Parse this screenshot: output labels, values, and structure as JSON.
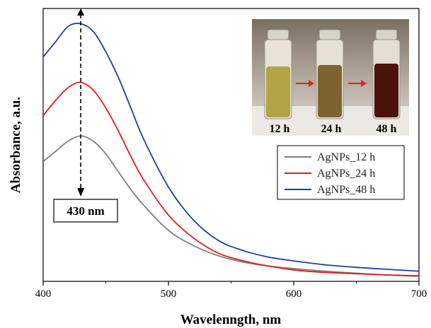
{
  "chart_data": {
    "type": "line",
    "xlabel": "Wavelenngth, nm",
    "ylabel": "Absorbance, a.u.",
    "xlim": [
      400,
      700
    ],
    "x_ticks": [
      "400",
      "500",
      "600",
      "700"
    ],
    "y_ticks": [],
    "grid": false,
    "legend_position": "right",
    "peak_annotation": {
      "x": 430,
      "label": "430 nm"
    },
    "inset_labels": [
      "12 h",
      "24 h",
      "48 h"
    ],
    "series": [
      {
        "name": "AgNPs_12 h",
        "color": "#7f7f7f",
        "x": [
          400,
          410,
          420,
          430,
          440,
          450,
          460,
          470,
          480,
          500,
          520,
          540,
          560,
          580,
          600,
          625,
          650,
          675,
          700
        ],
        "y": [
          0.46,
          0.5,
          0.54,
          0.56,
          0.54,
          0.49,
          0.42,
          0.35,
          0.29,
          0.19,
          0.13,
          0.09,
          0.065,
          0.05,
          0.04,
          0.03,
          0.022,
          0.015,
          0.01
        ]
      },
      {
        "name": "AgNPs_24 h",
        "color": "#e41a1c",
        "x": [
          400,
          410,
          420,
          430,
          440,
          450,
          460,
          470,
          480,
          500,
          520,
          540,
          560,
          580,
          600,
          625,
          650,
          675,
          700
        ],
        "y": [
          0.64,
          0.7,
          0.75,
          0.77,
          0.74,
          0.67,
          0.58,
          0.48,
          0.39,
          0.25,
          0.16,
          0.1,
          0.07,
          0.05,
          0.035,
          0.025,
          0.02,
          0.015,
          0.012
        ]
      },
      {
        "name": "AgNPs_48 h",
        "color": "#1f3f9f",
        "x": [
          400,
          410,
          420,
          430,
          440,
          450,
          460,
          470,
          480,
          500,
          520,
          540,
          560,
          580,
          600,
          625,
          650,
          675,
          700
        ],
        "y": [
          0.87,
          0.93,
          0.99,
          1.0,
          0.97,
          0.89,
          0.79,
          0.67,
          0.55,
          0.36,
          0.23,
          0.15,
          0.11,
          0.085,
          0.07,
          0.055,
          0.045,
          0.037,
          0.03
        ]
      }
    ]
  }
}
